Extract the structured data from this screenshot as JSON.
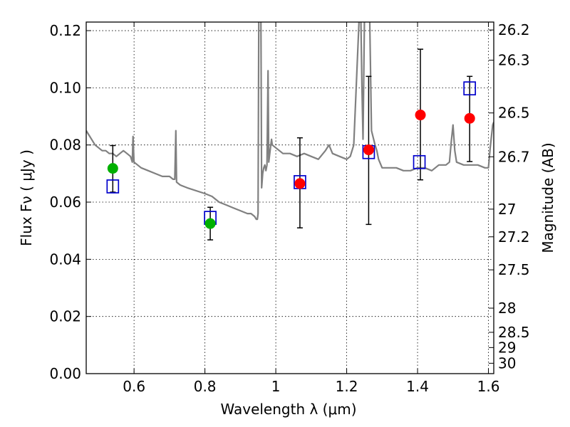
{
  "chart_data": {
    "type": "scatter",
    "xlabel": "Wavelength  λ (μm)",
    "ylabel": "Flux  Fν  ( μJy )",
    "ylabel_right": "Magnitude (AB)",
    "xlim": [
      0.465,
      1.615
    ],
    "ylim": [
      0.0,
      0.123
    ],
    "grid": true,
    "x_ticks": [
      0.6,
      0.8,
      1.0,
      1.2,
      1.4,
      1.6
    ],
    "x_tick_labels": [
      "0.6",
      "0.8",
      "1",
      "1.2",
      "1.4",
      "1.6"
    ],
    "y_ticks": [
      0.0,
      0.02,
      0.04,
      0.06,
      0.08,
      0.1,
      0.12
    ],
    "y_tick_labels": [
      "0.00",
      "0.02",
      "0.04",
      "0.06",
      "0.08",
      "0.10",
      "0.12"
    ],
    "mag_ticks": [
      26.2,
      26.3,
      26.5,
      26.7,
      27,
      27.2,
      27.5,
      28,
      28.5,
      29,
      30
    ],
    "mag_tick_labels": [
      "26.2",
      "26.3",
      "26.5",
      "26.7",
      "27",
      "27.2",
      "27.5",
      "28",
      "28.5",
      "29",
      "30"
    ],
    "series": [
      {
        "name": "Model SED",
        "kind": "line",
        "color": "#808080",
        "x": [
          0.465,
          0.48,
          0.49,
          0.5,
          0.51,
          0.52,
          0.53,
          0.54,
          0.55,
          0.56,
          0.57,
          0.58,
          0.59,
          0.595,
          0.597,
          0.6,
          0.62,
          0.64,
          0.66,
          0.68,
          0.7,
          0.71,
          0.715,
          0.718,
          0.72,
          0.73,
          0.75,
          0.8,
          0.82,
          0.84,
          0.86,
          0.88,
          0.9,
          0.92,
          0.93,
          0.94,
          0.945,
          0.948,
          0.95,
          0.952,
          0.955,
          0.958,
          0.96,
          0.963,
          0.966,
          0.969,
          0.972,
          0.975,
          0.978,
          0.98,
          0.984,
          0.988,
          0.99,
          1.0,
          1.01,
          1.02,
          1.04,
          1.06,
          1.08,
          1.1,
          1.12,
          1.14,
          1.15,
          1.16,
          1.18,
          1.2,
          1.21,
          1.22,
          1.235,
          1.24,
          1.243,
          1.246,
          1.25,
          1.255,
          1.265,
          1.27,
          1.28,
          1.285,
          1.29,
          1.3,
          1.32,
          1.34,
          1.36,
          1.38,
          1.4,
          1.42,
          1.44,
          1.46,
          1.48,
          1.49,
          1.495,
          1.5,
          1.505,
          1.51,
          1.53,
          1.55,
          1.57,
          1.59,
          1.6,
          1.605,
          1.612,
          1.615
        ],
        "y": [
          0.085,
          0.082,
          0.08,
          0.079,
          0.078,
          0.078,
          0.077,
          0.077,
          0.076,
          0.077,
          0.078,
          0.077,
          0.076,
          0.074,
          0.083,
          0.074,
          0.072,
          0.071,
          0.07,
          0.069,
          0.069,
          0.068,
          0.068,
          0.085,
          0.067,
          0.066,
          0.065,
          0.063,
          0.062,
          0.06,
          0.059,
          0.058,
          0.057,
          0.056,
          0.056,
          0.055,
          0.054,
          0.054,
          0.056,
          0.124,
          0.124,
          0.124,
          0.065,
          0.07,
          0.072,
          0.073,
          0.071,
          0.073,
          0.106,
          0.074,
          0.078,
          0.082,
          0.08,
          0.079,
          0.078,
          0.077,
          0.077,
          0.076,
          0.077,
          0.076,
          0.075,
          0.078,
          0.08,
          0.077,
          0.076,
          0.075,
          0.076,
          0.08,
          0.124,
          0.124,
          0.1,
          0.082,
          0.124,
          0.124,
          0.124,
          0.085,
          0.08,
          0.078,
          0.075,
          0.072,
          0.072,
          0.072,
          0.071,
          0.071,
          0.072,
          0.072,
          0.071,
          0.073,
          0.073,
          0.074,
          0.081,
          0.087,
          0.078,
          0.074,
          0.073,
          0.073,
          0.073,
          0.072,
          0.072,
          0.079,
          0.087,
          0.088
        ]
      },
      {
        "name": "Observed (green)",
        "kind": "points",
        "color": "#00b000",
        "x": [
          0.54,
          0.815
        ],
        "y": [
          0.0718,
          0.0525
        ],
        "yerr_low": [
          0.0635,
          0.0468
        ],
        "yerr_high": [
          0.0798,
          0.0582
        ]
      },
      {
        "name": "Observed (red)",
        "kind": "points",
        "color": "#ff0000",
        "x": [
          1.068,
          1.262,
          1.408,
          1.547
        ],
        "y": [
          0.0665,
          0.0783,
          0.0905,
          0.0893
        ],
        "yerr_low": [
          0.051,
          0.0522,
          0.0678,
          0.0742
        ],
        "yerr_high": [
          0.0825,
          0.104,
          0.1135,
          0.104
        ]
      },
      {
        "name": "Model photometry",
        "kind": "open-squares",
        "color": "#0000cc",
        "x": [
          0.54,
          0.815,
          1.068,
          1.262,
          1.405,
          1.547
        ],
        "y": [
          0.0655,
          0.0545,
          0.067,
          0.0775,
          0.074,
          0.0998
        ]
      }
    ]
  }
}
